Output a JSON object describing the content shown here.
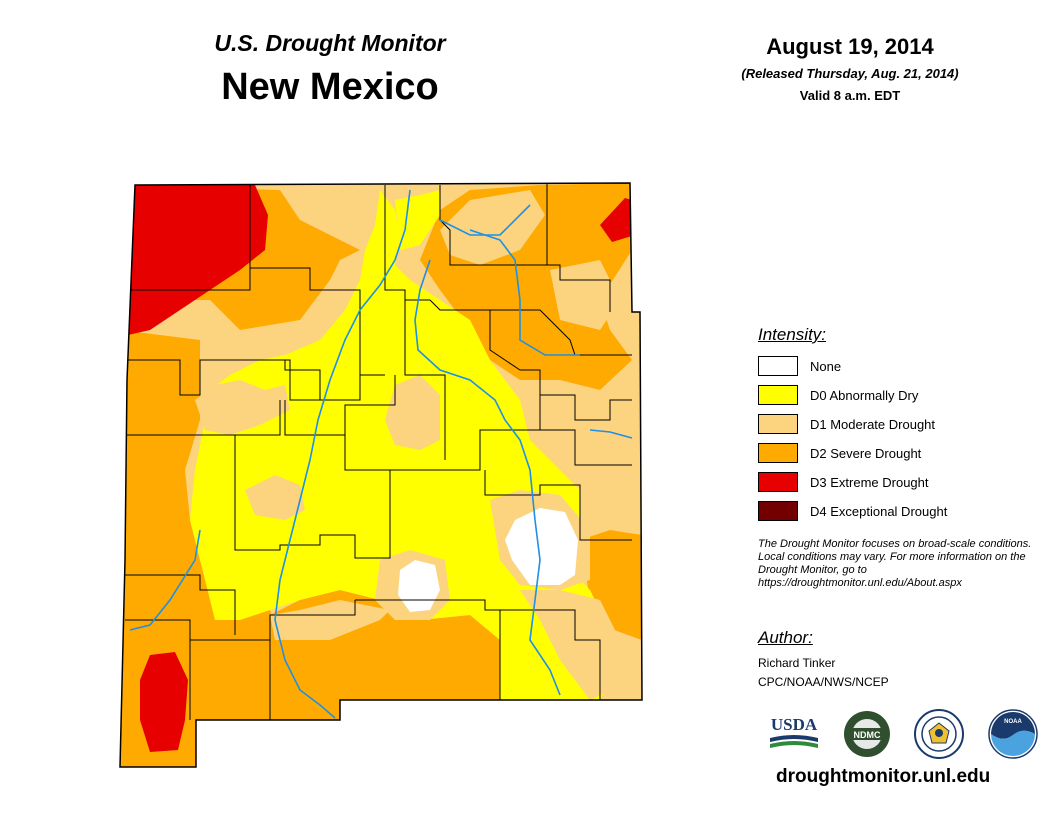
{
  "header": {
    "subtitle": "U.S. Drought Monitor",
    "title": "New Mexico",
    "date": "August 19, 2014",
    "released": "(Released Thursday, Aug. 21, 2014)",
    "valid": "Valid 8 a.m. EDT"
  },
  "legend": {
    "title": "Intensity:",
    "items": [
      {
        "label": "None",
        "color": "#ffffff"
      },
      {
        "label": "D0 Abnormally Dry",
        "color": "#ffff00"
      },
      {
        "label": "D1 Moderate Drought",
        "color": "#fcd37f"
      },
      {
        "label": "D2 Severe Drought",
        "color": "#ffaa00"
      },
      {
        "label": "D3 Extreme Drought",
        "color": "#e60000"
      },
      {
        "label": "D4 Exceptional Drought",
        "color": "#730000"
      }
    ]
  },
  "disclaimer": "The Drought Monitor focuses on broad-scale conditions. Local conditions may vary. For more information on the Drought Monitor, go to https://droughtmonitor.unl.edu/About.aspx",
  "author": {
    "title": "Author:",
    "name": "Richard Tinker",
    "org": "CPC/NOAA/NWS/NCEP"
  },
  "logos": {
    "usda": "USDA",
    "ndmc": "NDMC",
    "noaa": "NOAA",
    "items": [
      "usda-logo",
      "ndmc-logo",
      "commerce-seal",
      "noaa-logo"
    ]
  },
  "website": "droughtmonitor.unl.edu",
  "colors": {
    "river": "#1e90e6",
    "county_border": "#000000"
  }
}
